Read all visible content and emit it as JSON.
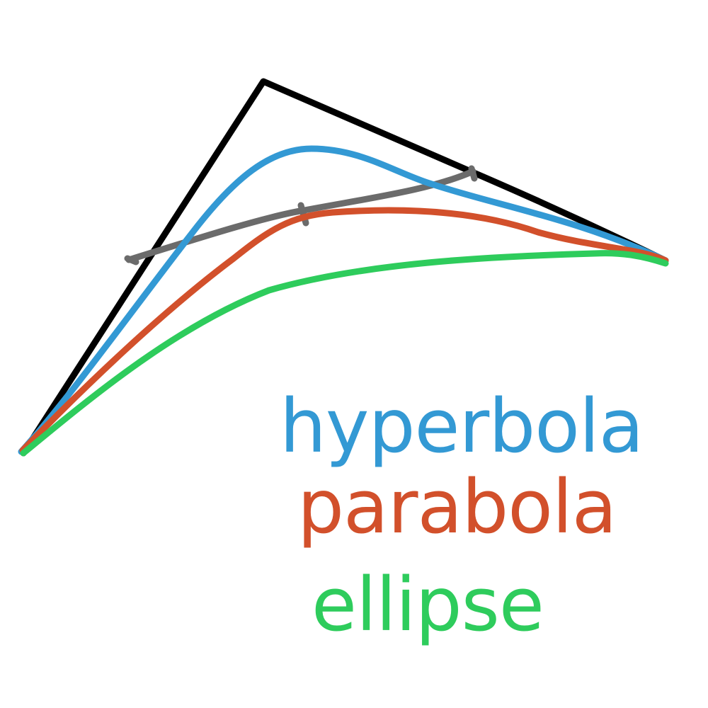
{
  "colors": {
    "background": "#ffffff",
    "control_polygon": "#000000",
    "shoulder_line": "#6b6b6b",
    "hyperbola": "#3399d4",
    "parabola": "#d2502b",
    "ellipse": "#2ecc5c"
  },
  "legend": [
    {
      "key": "hyperbola",
      "label": "hyperbola"
    },
    {
      "key": "parabola",
      "label": "parabola"
    },
    {
      "key": "ellipse",
      "label": "ellipse"
    }
  ]
}
